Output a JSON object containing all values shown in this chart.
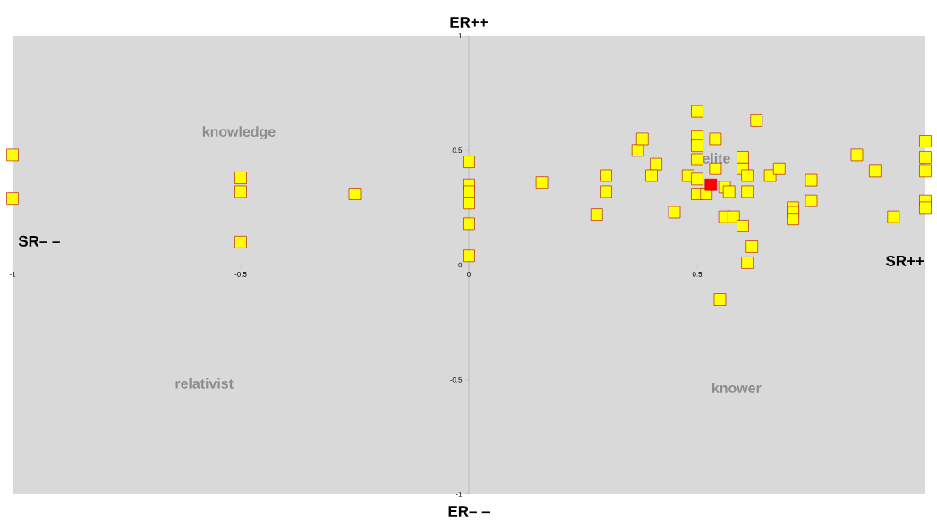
{
  "chart_data": {
    "type": "scatter",
    "annotations": [
      "knowledge",
      "elite",
      "relativist",
      "knower",
      "SR++",
      "SR– –",
      "ER++",
      "ER– –"
    ],
    "series": [
      {
        "color": "#ffff00",
        "x": [
          -1,
          -1,
          -0.5,
          -0.5,
          -0.5,
          -0.25,
          0,
          0,
          0,
          0,
          0,
          0,
          0.16,
          0.28,
          0.3,
          0.3,
          0.37,
          0.38,
          0.41,
          0.4,
          0.45,
          0.48,
          0.5,
          0.5,
          0.5,
          0.5,
          0.5,
          0.5,
          0.52,
          0.54,
          0.54,
          0.56,
          0.57,
          0.56,
          0.58,
          0.6,
          0.62,
          0.61,
          0.55,
          0.6,
          0.6,
          0.61,
          0.61,
          0.63,
          0.66,
          0.68,
          0.75,
          0.75,
          0.71,
          0.71,
          0.71,
          0.85,
          0.89,
          0.93,
          1,
          1,
          1,
          1,
          1
        ],
        "values": [
          0.48,
          0.29,
          0.38,
          0.32,
          0.1,
          0.31,
          0.45,
          0.35,
          0.32,
          0.27,
          0.18,
          0.04,
          0.36,
          0.22,
          0.39,
          0.32,
          0.5,
          0.55,
          0.44,
          0.39,
          0.23,
          0.39,
          0.67,
          0.56,
          0.52,
          0.46,
          0.375,
          0.31,
          0.31,
          0.55,
          0.42,
          0.34,
          0.32,
          0.21,
          0.21,
          0.17,
          0.08,
          0.01,
          -0.15,
          0.47,
          0.42,
          0.39,
          0.32,
          0.63,
          0.39,
          0.42,
          0.37,
          0.28,
          0.25,
          0.23,
          0.2,
          0.48,
          0.41,
          0.21,
          0.54,
          0.47,
          0.41,
          0.28,
          0.25
        ]
      },
      {
        "color": "#ff0000",
        "x": [
          0.53
        ],
        "values": [
          0.35
        ]
      }
    ],
    "xlim": [
      -1,
      1
    ],
    "ylim": [
      -1,
      1
    ],
    "xticks": [
      -1,
      -0.5,
      0,
      0.5,
      {
        "value": 1,
        "label": null
      }
    ],
    "yticks": [
      -1,
      -0.5,
      0,
      0.5,
      1
    ],
    "grid": false,
    "marker": "square"
  }
}
